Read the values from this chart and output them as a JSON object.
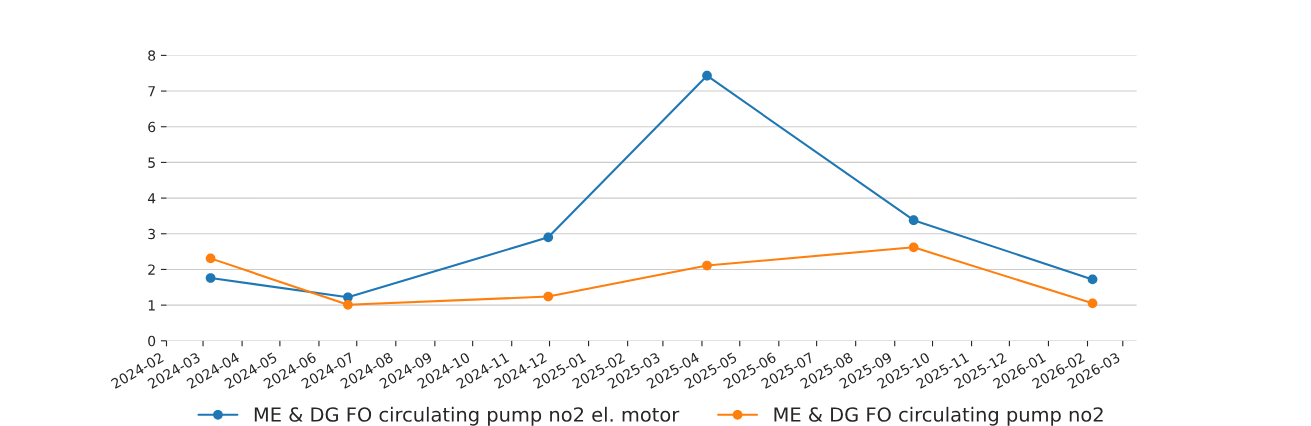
{
  "chart_data": {
    "type": "line",
    "x": [
      "2024-03-07",
      "2024-06-24",
      "2024-11-30",
      "2025-04-05",
      "2025-09-16",
      "2026-02-05"
    ],
    "series": [
      {
        "name": "ME & DG FO circulating pump no2 el. motor",
        "color": "#1f77b4",
        "values": [
          1.76,
          1.22,
          2.9,
          7.43,
          3.38,
          1.72
        ]
      },
      {
        "name": "ME & DG FO circulating pump no2",
        "color": "#ff7f0e",
        "values": [
          2.31,
          1.01,
          1.24,
          2.11,
          2.62,
          1.05
        ]
      }
    ],
    "xlim": [
      "2024-02-01",
      "2026-03-12"
    ],
    "xticks": [
      "2024-02",
      "2024-03",
      "2024-04",
      "2024-05",
      "2024-06",
      "2024-07",
      "2024-08",
      "2024-09",
      "2024-10",
      "2024-11",
      "2024-12",
      "2025-01",
      "2025-02",
      "2025-03",
      "2025-04",
      "2025-05",
      "2025-06",
      "2025-07",
      "2025-08",
      "2025-09",
      "2025-10",
      "2025-11",
      "2025-12",
      "2026-01",
      "2026-02",
      "2026-03"
    ],
    "ylim": [
      0,
      8
    ],
    "yticks": [
      0,
      1,
      2,
      3,
      4,
      5,
      6,
      7,
      8
    ],
    "grid": "y",
    "legend": "bottom",
    "marker": "circle",
    "line_style": "solid"
  }
}
